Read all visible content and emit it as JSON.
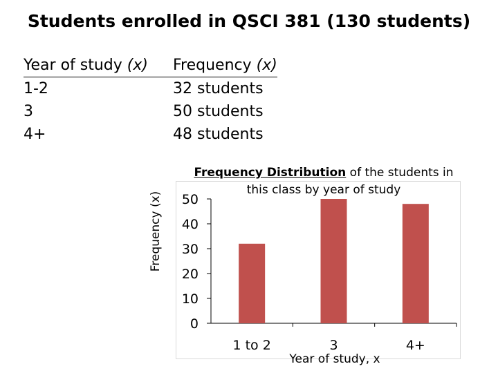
{
  "slide": {
    "title": "Students enrolled in QSCI 381 (130 students)"
  },
  "table": {
    "col1_header": "Year of study",
    "col1_var": "(x)",
    "col2_header": "Frequency",
    "col2_var": "(x)",
    "rows": [
      {
        "year": "1-2",
        "freq": "32 students"
      },
      {
        "year": "3",
        "freq": "50 students"
      },
      {
        "year": "4+",
        "freq": "48 students"
      }
    ]
  },
  "chart_data": {
    "type": "bar",
    "title_underlined": "Frequency Distribution",
    "title_rest": " of the students in this class by year of study",
    "categories": [
      "1 to 2",
      "3",
      "4+"
    ],
    "values": [
      32,
      50,
      48
    ],
    "ylabel": "Frequency (x)",
    "xlabel": "Year of study, x",
    "ylim": [
      0,
      50
    ],
    "yticks": [
      "0",
      "10",
      "20",
      "30",
      "40",
      "50"
    ],
    "bar_color": "#c0504d",
    "grid": false
  }
}
